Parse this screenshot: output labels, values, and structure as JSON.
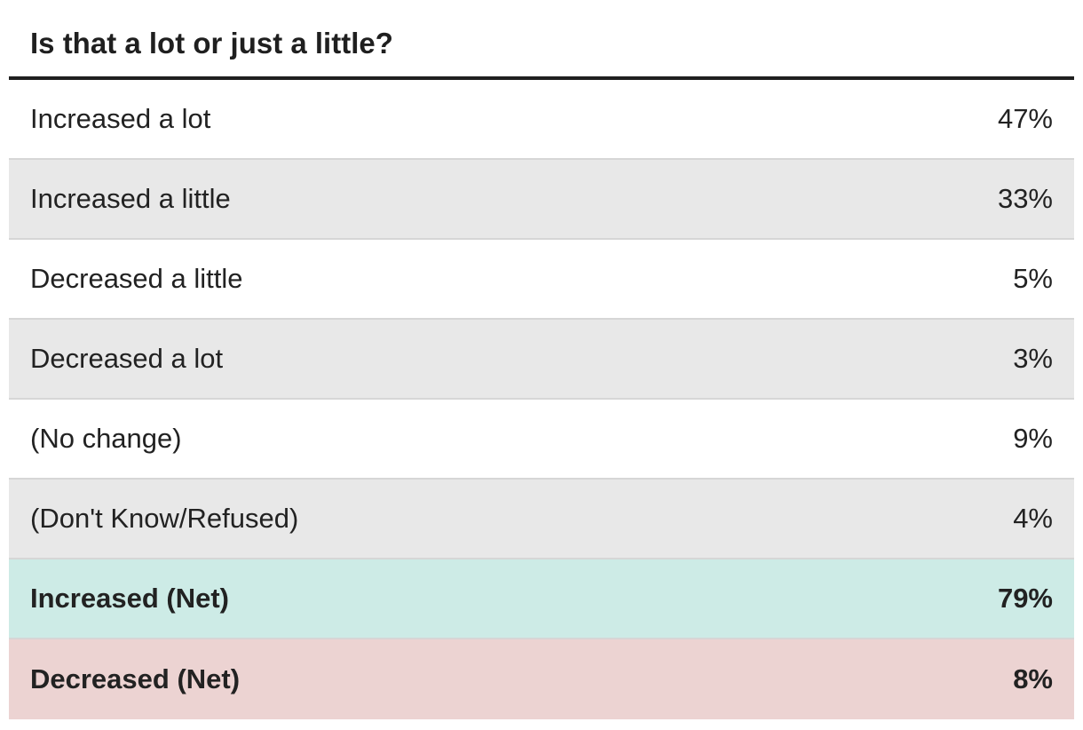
{
  "title": "Is that a lot or just a little?",
  "colors": {
    "zebra": "#e8e8e8",
    "increased_net": "#cdebe6",
    "decreased_net": "#ecd3d2",
    "rule": "#1f1f1f"
  },
  "chart_data": {
    "type": "table",
    "title": "Is that a lot or just a little?",
    "rows": [
      {
        "label": "Increased a lot",
        "value": "47%",
        "shaded": false,
        "net": false
      },
      {
        "label": "Increased a little",
        "value": "33%",
        "shaded": true,
        "net": false
      },
      {
        "label": "Decreased a little",
        "value": "5%",
        "shaded": false,
        "net": false
      },
      {
        "label": "Decreased a lot",
        "value": "3%",
        "shaded": true,
        "net": false
      },
      {
        "label": "(No change)",
        "value": "9%",
        "shaded": false,
        "net": false
      },
      {
        "label": "(Don't Know/Refused)",
        "value": "4%",
        "shaded": true,
        "net": false
      },
      {
        "label": "Increased (Net)",
        "value": "79%",
        "shaded": false,
        "net": true,
        "color": "#cdebe6"
      },
      {
        "label": "Decreased (Net)",
        "value": "8%",
        "shaded": false,
        "net": true,
        "color": "#ecd3d2"
      }
    ]
  }
}
